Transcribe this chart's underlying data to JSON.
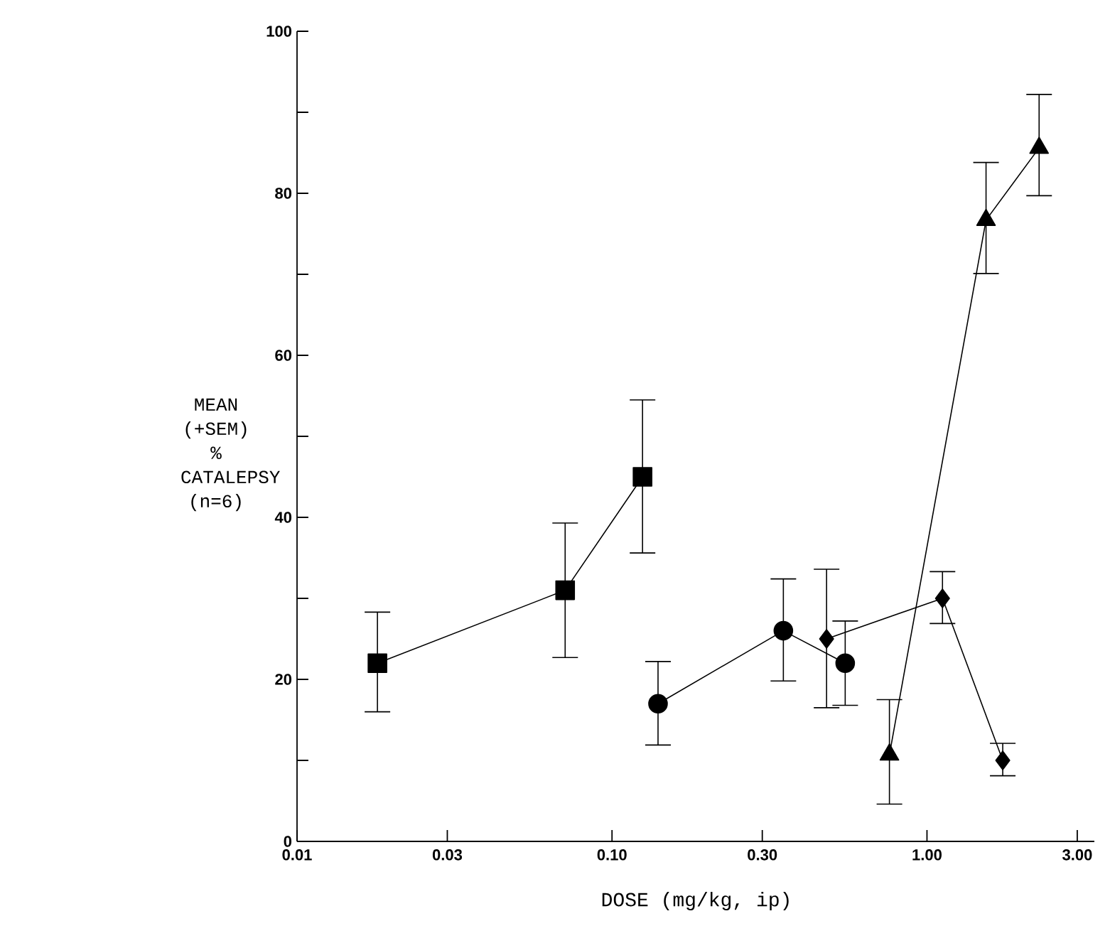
{
  "chart_data": {
    "type": "line",
    "xlabel": "DOSE (mg/kg, ip)",
    "ylabel": "MEAN (+SEM) % CATALEPSY (n=6)",
    "log": "x",
    "xlim": [
      0.01,
      3.4
    ],
    "ylim": [
      0,
      100
    ],
    "xticks": [
      {
        "value": 0.01,
        "label": "0.01"
      },
      {
        "value": 0.03,
        "label": "0.03"
      },
      {
        "value": 0.1,
        "label": "0.10"
      },
      {
        "value": 0.3,
        "label": "0.30"
      },
      {
        "value": 1,
        "label": "1.00"
      },
      {
        "value": 3,
        "label": "3.00"
      }
    ],
    "yticks": [
      0,
      {
        "value": 10,
        "label": null
      },
      20,
      {
        "value": 30,
        "label": null
      },
      40,
      {
        "value": 50,
        "label": null
      },
      60,
      {
        "value": 70,
        "label": null
      },
      80,
      {
        "value": 90,
        "label": null
      },
      100
    ],
    "line_style": "solid",
    "series": [
      {
        "color": "#000000",
        "marker": "square",
        "x": [
          0.018,
          0.071,
          0.125
        ],
        "values": [
          22,
          31,
          45
        ],
        "errors": [
          [
            16,
            28.3
          ],
          [
            22.7,
            39.3
          ],
          [
            35.6,
            54.5
          ]
        ]
      },
      {
        "color": "#000000",
        "marker": "circle",
        "x": [
          0.14,
          0.35,
          0.55
        ],
        "values": [
          17,
          26,
          22
        ],
        "errors": [
          [
            11.9,
            22.2
          ],
          [
            19.8,
            32.4
          ],
          [
            16.8,
            27.2
          ]
        ]
      },
      {
        "color": "#000000",
        "marker": "diamond",
        "x": [
          0.48,
          1.12,
          1.74
        ],
        "values": [
          25,
          30,
          10
        ],
        "errors": [
          [
            16.5,
            33.6
          ],
          [
            26.9,
            33.3
          ],
          [
            8.1,
            12.1
          ]
        ]
      },
      {
        "color": "#000000",
        "marker": "triangle",
        "x": [
          0.76,
          1.54,
          2.27
        ],
        "values": [
          10.7,
          76.7,
          85.6
        ],
        "errors": [
          [
            4.6,
            17.5
          ],
          [
            70.1,
            83.8
          ],
          [
            79.7,
            92.2
          ]
        ]
      }
    ]
  }
}
